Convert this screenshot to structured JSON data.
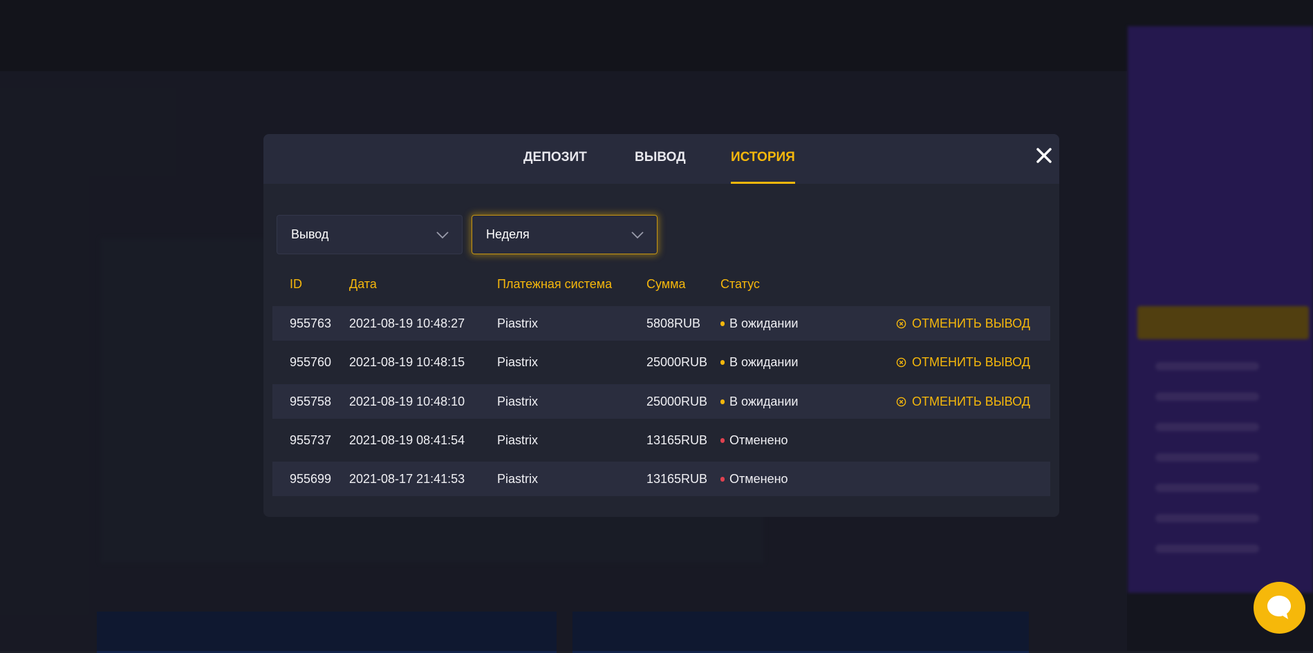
{
  "modal": {
    "tabs": [
      {
        "label": "ДЕПОЗИТ",
        "active": false
      },
      {
        "label": "ВЫВОД",
        "active": false
      },
      {
        "label": "ИСТОРИЯ",
        "active": true
      }
    ],
    "close_icon": "close-icon",
    "filters": {
      "type": {
        "value": "Вывод"
      },
      "period": {
        "value": "Неделя"
      }
    },
    "table": {
      "headers": [
        "ID",
        "Дата",
        "Платежная система",
        "Сумма",
        "Статус"
      ],
      "rows": [
        {
          "id": "955763",
          "date": "2021-08-19 10:48:27",
          "system": "Piastrix",
          "amount": "5808RUB",
          "status": "В ожидании",
          "status_color": "#f5b70c",
          "action": "ОТМЕНИТЬ ВЫВОД"
        },
        {
          "id": "955760",
          "date": "2021-08-19 10:48:15",
          "system": "Piastrix",
          "amount": "25000RUB",
          "status": "В ожидании",
          "status_color": "#f5b70c",
          "action": "ОТМЕНИТЬ ВЫВОД"
        },
        {
          "id": "955758",
          "date": "2021-08-19 10:48:10",
          "system": "Piastrix",
          "amount": "25000RUB",
          "status": "В ожидании",
          "status_color": "#f5b70c",
          "action": "ОТМЕНИТЬ ВЫВОД"
        },
        {
          "id": "955737",
          "date": "2021-08-19 08:41:54",
          "system": "Piastrix",
          "amount": "13165RUB",
          "status": "Отменено",
          "status_color": "#e0414f",
          "action": null
        },
        {
          "id": "955699",
          "date": "2021-08-17 21:41:53",
          "system": "Piastrix",
          "amount": "13165RUB",
          "status": "Отменено",
          "status_color": "#e0414f",
          "action": null
        }
      ]
    }
  },
  "colors": {
    "accent": "#f5b70c",
    "modal_bg": "#222531",
    "sidebar": "#3b2480"
  },
  "chat_icon": "chat-bubble-icon"
}
